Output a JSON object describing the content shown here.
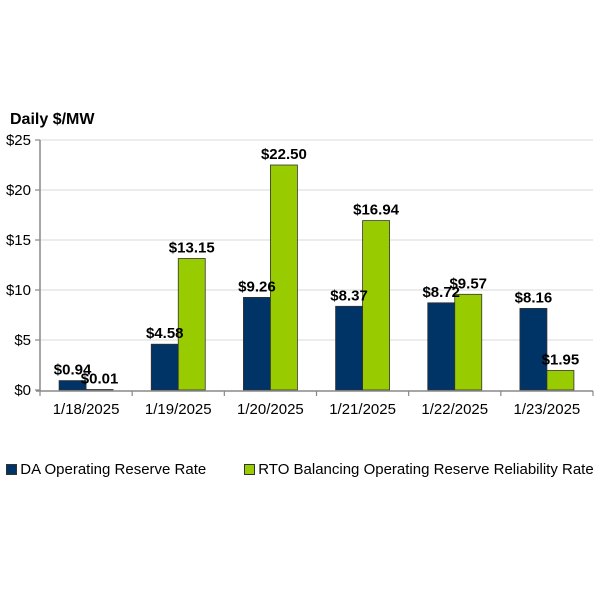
{
  "chart_data": {
    "type": "bar",
    "title": "",
    "ylabel": "Daily $/MW",
    "xlabel": "",
    "categories": [
      "1/18/2025",
      "1/19/2025",
      "1/20/2025",
      "1/21/2025",
      "1/22/2025",
      "1/23/2025"
    ],
    "series": [
      {
        "name": "DA Operating Reserve Rate",
        "color": "#003366",
        "values": [
          0.94,
          4.58,
          9.26,
          8.37,
          8.72,
          8.16
        ],
        "labels": [
          "$0.94",
          "$4.58",
          "$9.26",
          "$8.37",
          "$8.72",
          "$8.16"
        ]
      },
      {
        "name": "RTO Balancing Operating Reserve Reliability Rate",
        "color": "#99CC00",
        "values": [
          0.01,
          13.15,
          22.5,
          16.94,
          9.57,
          1.95
        ],
        "labels": [
          "$0.01",
          "$13.15",
          "$22.50",
          "$16.94",
          "$9.57",
          "$1.95"
        ]
      }
    ],
    "ylim": [
      0,
      25
    ],
    "yticks": [
      0,
      5,
      10,
      15,
      20,
      25
    ],
    "ytick_labels": [
      "$0",
      "$5",
      "$10",
      "$15",
      "$20",
      "$25"
    ],
    "grid": true,
    "legend_position": "bottom"
  }
}
